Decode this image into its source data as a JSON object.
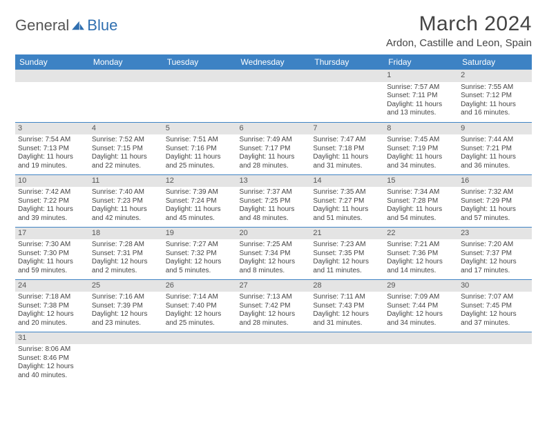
{
  "logo": {
    "main": "General",
    "accent": "Blue"
  },
  "title": "March 2024",
  "location": "Ardon, Castille and Leon, Spain",
  "colors": {
    "header_bg": "#3d82c4",
    "header_fg": "#ffffff",
    "daynum_bg": "#e4e4e4",
    "rule": "#3d82c4",
    "text": "#444444",
    "logo_accent": "#2f6fb0"
  },
  "weekdays": [
    "Sunday",
    "Monday",
    "Tuesday",
    "Wednesday",
    "Thursday",
    "Friday",
    "Saturday"
  ],
  "weeks": [
    [
      null,
      null,
      null,
      null,
      null,
      {
        "n": "1",
        "sr": "Sunrise: 7:57 AM",
        "ss": "Sunset: 7:11 PM",
        "dl": "Daylight: 11 hours and 13 minutes."
      },
      {
        "n": "2",
        "sr": "Sunrise: 7:55 AM",
        "ss": "Sunset: 7:12 PM",
        "dl": "Daylight: 11 hours and 16 minutes."
      }
    ],
    [
      {
        "n": "3",
        "sr": "Sunrise: 7:54 AM",
        "ss": "Sunset: 7:13 PM",
        "dl": "Daylight: 11 hours and 19 minutes."
      },
      {
        "n": "4",
        "sr": "Sunrise: 7:52 AM",
        "ss": "Sunset: 7:15 PM",
        "dl": "Daylight: 11 hours and 22 minutes."
      },
      {
        "n": "5",
        "sr": "Sunrise: 7:51 AM",
        "ss": "Sunset: 7:16 PM",
        "dl": "Daylight: 11 hours and 25 minutes."
      },
      {
        "n": "6",
        "sr": "Sunrise: 7:49 AM",
        "ss": "Sunset: 7:17 PM",
        "dl": "Daylight: 11 hours and 28 minutes."
      },
      {
        "n": "7",
        "sr": "Sunrise: 7:47 AM",
        "ss": "Sunset: 7:18 PM",
        "dl": "Daylight: 11 hours and 31 minutes."
      },
      {
        "n": "8",
        "sr": "Sunrise: 7:45 AM",
        "ss": "Sunset: 7:19 PM",
        "dl": "Daylight: 11 hours and 34 minutes."
      },
      {
        "n": "9",
        "sr": "Sunrise: 7:44 AM",
        "ss": "Sunset: 7:21 PM",
        "dl": "Daylight: 11 hours and 36 minutes."
      }
    ],
    [
      {
        "n": "10",
        "sr": "Sunrise: 7:42 AM",
        "ss": "Sunset: 7:22 PM",
        "dl": "Daylight: 11 hours and 39 minutes."
      },
      {
        "n": "11",
        "sr": "Sunrise: 7:40 AM",
        "ss": "Sunset: 7:23 PM",
        "dl": "Daylight: 11 hours and 42 minutes."
      },
      {
        "n": "12",
        "sr": "Sunrise: 7:39 AM",
        "ss": "Sunset: 7:24 PM",
        "dl": "Daylight: 11 hours and 45 minutes."
      },
      {
        "n": "13",
        "sr": "Sunrise: 7:37 AM",
        "ss": "Sunset: 7:25 PM",
        "dl": "Daylight: 11 hours and 48 minutes."
      },
      {
        "n": "14",
        "sr": "Sunrise: 7:35 AM",
        "ss": "Sunset: 7:27 PM",
        "dl": "Daylight: 11 hours and 51 minutes."
      },
      {
        "n": "15",
        "sr": "Sunrise: 7:34 AM",
        "ss": "Sunset: 7:28 PM",
        "dl": "Daylight: 11 hours and 54 minutes."
      },
      {
        "n": "16",
        "sr": "Sunrise: 7:32 AM",
        "ss": "Sunset: 7:29 PM",
        "dl": "Daylight: 11 hours and 57 minutes."
      }
    ],
    [
      {
        "n": "17",
        "sr": "Sunrise: 7:30 AM",
        "ss": "Sunset: 7:30 PM",
        "dl": "Daylight: 11 hours and 59 minutes."
      },
      {
        "n": "18",
        "sr": "Sunrise: 7:28 AM",
        "ss": "Sunset: 7:31 PM",
        "dl": "Daylight: 12 hours and 2 minutes."
      },
      {
        "n": "19",
        "sr": "Sunrise: 7:27 AM",
        "ss": "Sunset: 7:32 PM",
        "dl": "Daylight: 12 hours and 5 minutes."
      },
      {
        "n": "20",
        "sr": "Sunrise: 7:25 AM",
        "ss": "Sunset: 7:34 PM",
        "dl": "Daylight: 12 hours and 8 minutes."
      },
      {
        "n": "21",
        "sr": "Sunrise: 7:23 AM",
        "ss": "Sunset: 7:35 PM",
        "dl": "Daylight: 12 hours and 11 minutes."
      },
      {
        "n": "22",
        "sr": "Sunrise: 7:21 AM",
        "ss": "Sunset: 7:36 PM",
        "dl": "Daylight: 12 hours and 14 minutes."
      },
      {
        "n": "23",
        "sr": "Sunrise: 7:20 AM",
        "ss": "Sunset: 7:37 PM",
        "dl": "Daylight: 12 hours and 17 minutes."
      }
    ],
    [
      {
        "n": "24",
        "sr": "Sunrise: 7:18 AM",
        "ss": "Sunset: 7:38 PM",
        "dl": "Daylight: 12 hours and 20 minutes."
      },
      {
        "n": "25",
        "sr": "Sunrise: 7:16 AM",
        "ss": "Sunset: 7:39 PM",
        "dl": "Daylight: 12 hours and 23 minutes."
      },
      {
        "n": "26",
        "sr": "Sunrise: 7:14 AM",
        "ss": "Sunset: 7:40 PM",
        "dl": "Daylight: 12 hours and 25 minutes."
      },
      {
        "n": "27",
        "sr": "Sunrise: 7:13 AM",
        "ss": "Sunset: 7:42 PM",
        "dl": "Daylight: 12 hours and 28 minutes."
      },
      {
        "n": "28",
        "sr": "Sunrise: 7:11 AM",
        "ss": "Sunset: 7:43 PM",
        "dl": "Daylight: 12 hours and 31 minutes."
      },
      {
        "n": "29",
        "sr": "Sunrise: 7:09 AM",
        "ss": "Sunset: 7:44 PM",
        "dl": "Daylight: 12 hours and 34 minutes."
      },
      {
        "n": "30",
        "sr": "Sunrise: 7:07 AM",
        "ss": "Sunset: 7:45 PM",
        "dl": "Daylight: 12 hours and 37 minutes."
      }
    ],
    [
      {
        "n": "31",
        "sr": "Sunrise: 8:06 AM",
        "ss": "Sunset: 8:46 PM",
        "dl": "Daylight: 12 hours and 40 minutes."
      },
      null,
      null,
      null,
      null,
      null,
      null
    ]
  ]
}
